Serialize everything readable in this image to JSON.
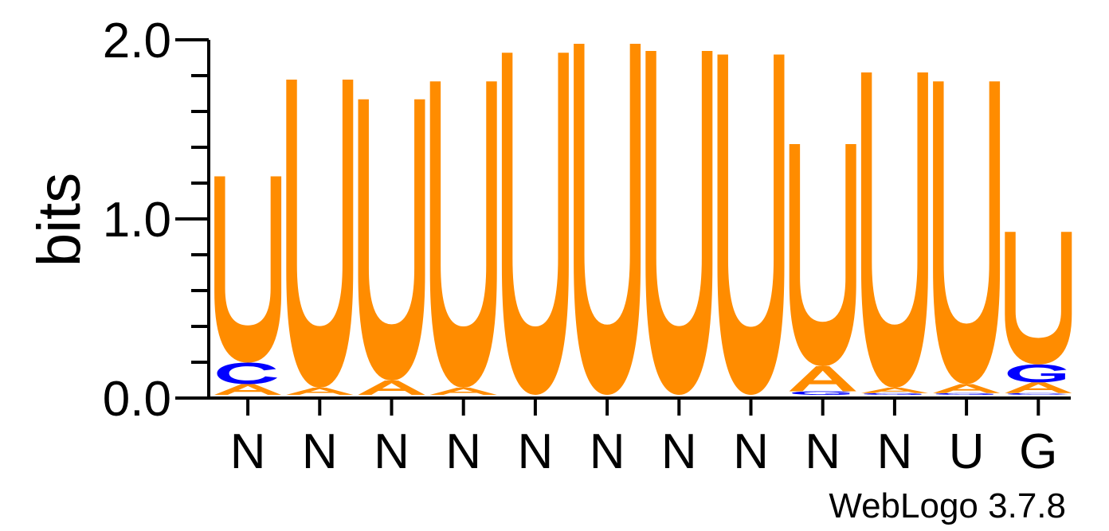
{
  "chart_data": {
    "type": "sequence-logo",
    "ylabel": "bits",
    "ylim": [
      0,
      2
    ],
    "yticks": [
      {
        "value": 0,
        "label": "0.0"
      },
      {
        "value": 1,
        "label": "1.0"
      },
      {
        "value": 2,
        "label": "2.0"
      }
    ],
    "categories": [
      "N",
      "N",
      "N",
      "N",
      "N",
      "N",
      "N",
      "N",
      "N",
      "N",
      "U",
      "G"
    ],
    "colors": {
      "U": "#ff8c00",
      "A": "#ff8c00",
      "C": "#0000ff",
      "G": "#0000ff"
    },
    "positions": [
      {
        "letters": [
          {
            "base": "A",
            "bits": 0.06
          },
          {
            "base": "C",
            "bits": 0.12
          },
          {
            "base": "U",
            "bits": 1.04
          }
        ]
      },
      {
        "letters": [
          {
            "base": "A",
            "bits": 0.04
          },
          {
            "base": "U",
            "bits": 1.72
          }
        ]
      },
      {
        "letters": [
          {
            "base": "A",
            "bits": 0.08
          },
          {
            "base": "U",
            "bits": 1.57
          }
        ]
      },
      {
        "letters": [
          {
            "base": "A",
            "bits": 0.04
          },
          {
            "base": "U",
            "bits": 1.71
          }
        ]
      },
      {
        "letters": [
          {
            "base": "U",
            "bits": 1.91
          }
        ]
      },
      {
        "letters": [
          {
            "base": "U",
            "bits": 1.96
          }
        ]
      },
      {
        "letters": [
          {
            "base": "U",
            "bits": 1.92
          }
        ]
      },
      {
        "letters": [
          {
            "base": "U",
            "bits": 1.9
          }
        ]
      },
      {
        "letters": [
          {
            "base": "G",
            "bits": 0.02
          },
          {
            "base": "A",
            "bits": 0.14
          },
          {
            "base": "U",
            "bits": 1.24
          }
        ]
      },
      {
        "letters": [
          {
            "base": "G",
            "bits": 0.01
          },
          {
            "base": "A",
            "bits": 0.03
          },
          {
            "base": "U",
            "bits": 1.76
          }
        ]
      },
      {
        "letters": [
          {
            "base": "G",
            "bits": 0.01
          },
          {
            "base": "A",
            "bits": 0.05
          },
          {
            "base": "U",
            "bits": 1.69
          }
        ]
      },
      {
        "letters": [
          {
            "base": "C",
            "bits": 0.01
          },
          {
            "base": "A",
            "bits": 0.06
          },
          {
            "base": "G",
            "bits": 0.1
          },
          {
            "base": "U",
            "bits": 0.74
          }
        ]
      }
    ]
  },
  "credit": "WebLogo 3.7.8"
}
